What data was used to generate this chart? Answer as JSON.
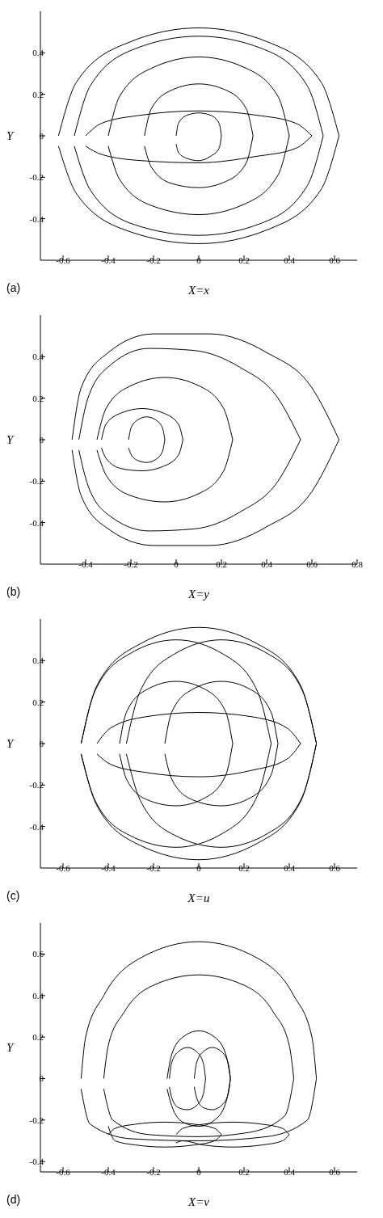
{
  "chart_data": [
    {
      "type": "line",
      "xlabel": "X=x",
      "ylabel": "Y",
      "annotations": [
        "(a)"
      ],
      "xlim": [
        -0.7,
        0.7
      ],
      "ylim": [
        -0.6,
        0.6
      ],
      "xticks": [
        -0.6,
        -0.4,
        -0.2,
        0,
        0.2,
        0.4,
        0.6
      ],
      "yticks": [
        -0.4,
        -0.2,
        0,
        0.2,
        0.4
      ],
      "series": [
        {
          "color": "#000000",
          "x": [
            -0.62,
            -0.54,
            -0.31,
            0,
            0.31,
            0.54,
            0.62
          ],
          "values": [
            0,
            0.26,
            0.45,
            0.52,
            0.45,
            0.26,
            0
          ]
        },
        {
          "color": "#000000",
          "x": [
            -0.62,
            -0.54,
            -0.31,
            0,
            0.31,
            0.54,
            0.62
          ],
          "values": [
            -0.05,
            -0.28,
            -0.46,
            -0.52,
            -0.45,
            -0.26,
            0
          ]
        },
        {
          "color": "#000000",
          "x": [
            -0.55,
            -0.48,
            -0.28,
            0,
            0.28,
            0.48,
            0.55
          ],
          "values": [
            0,
            0.24,
            0.42,
            0.48,
            0.42,
            0.24,
            0
          ]
        },
        {
          "color": "#000000",
          "x": [
            -0.55,
            -0.48,
            -0.28,
            0,
            0.28,
            0.48,
            0.55
          ],
          "values": [
            -0.05,
            -0.26,
            -0.43,
            -0.48,
            -0.42,
            -0.24,
            0
          ]
        },
        {
          "color": "#000000",
          "x": [
            -0.4,
            -0.35,
            -0.2,
            0,
            0.2,
            0.35,
            0.4
          ],
          "values": [
            0,
            0.19,
            0.33,
            0.38,
            0.33,
            0.19,
            0
          ]
        },
        {
          "color": "#000000",
          "x": [
            -0.4,
            -0.35,
            -0.2,
            0,
            0.2,
            0.35,
            0.4
          ],
          "values": [
            -0.05,
            -0.21,
            -0.34,
            -0.38,
            -0.33,
            -0.19,
            0
          ]
        },
        {
          "color": "#000000",
          "x": [
            -0.24,
            -0.21,
            -0.12,
            0,
            0.12,
            0.21,
            0.24
          ],
          "values": [
            0,
            0.13,
            0.22,
            0.25,
            0.22,
            0.13,
            0
          ]
        },
        {
          "color": "#000000",
          "x": [
            -0.24,
            -0.21,
            -0.12,
            0,
            0.12,
            0.21,
            0.24
          ],
          "values": [
            -0.05,
            -0.15,
            -0.23,
            -0.25,
            -0.22,
            -0.13,
            0
          ]
        },
        {
          "color": "#000000",
          "x": [
            -0.1,
            -0.09,
            -0.05,
            0,
            0.05,
            0.09,
            0.1
          ],
          "values": [
            0,
            0.06,
            0.1,
            0.11,
            0.1,
            0.06,
            0
          ]
        },
        {
          "color": "#000000",
          "x": [
            -0.1,
            -0.09,
            -0.05,
            0,
            0.05,
            0.09,
            0.1
          ],
          "values": [
            -0.04,
            -0.08,
            -0.11,
            -0.12,
            -0.1,
            -0.06,
            0
          ]
        },
        {
          "color": "#000000",
          "x": [
            -0.5,
            -0.43,
            -0.25,
            0,
            0.25,
            0.43,
            0.5
          ],
          "values": [
            0,
            0.06,
            0.1,
            0.12,
            0.1,
            0.06,
            0
          ]
        },
        {
          "color": "#000000",
          "x": [
            -0.5,
            -0.43,
            -0.25,
            0,
            0.25,
            0.43,
            0.5
          ],
          "values": [
            -0.05,
            -0.09,
            -0.12,
            -0.13,
            -0.1,
            -0.06,
            0
          ]
        }
      ]
    },
    {
      "type": "line",
      "xlabel": "X=y",
      "ylabel": "Y",
      "annotations": [
        "(b)"
      ],
      "xlim": [
        -0.6,
        0.8
      ],
      "ylim": [
        -0.6,
        0.6
      ],
      "xticks": [
        -0.4,
        -0.2,
        0,
        0.2,
        0.4,
        0.6,
        0.8
      ],
      "yticks": [
        -0.4,
        -0.2,
        0,
        0.2,
        0.4
      ],
      "series": [
        {
          "color": "#000000",
          "x": [
            -0.46,
            -0.42,
            -0.3,
            -0.1,
            0.15,
            0.4,
            0.6,
            0.72
          ],
          "values": [
            0,
            0.25,
            0.42,
            0.51,
            0.51,
            0.42,
            0.25,
            0
          ]
        },
        {
          "color": "#000000",
          "x": [
            -0.46,
            -0.42,
            -0.3,
            -0.1,
            0.15,
            0.4,
            0.6,
            0.72
          ],
          "values": [
            -0.05,
            -0.27,
            -0.43,
            -0.51,
            -0.51,
            -0.42,
            -0.25,
            0
          ]
        },
        {
          "color": "#000000",
          "x": [
            -0.43,
            -0.39,
            -0.29,
            -0.12,
            0.08,
            0.28,
            0.45,
            0.55
          ],
          "values": [
            0,
            0.2,
            0.36,
            0.44,
            0.43,
            0.35,
            0.2,
            0
          ]
        },
        {
          "color": "#000000",
          "x": [
            -0.43,
            -0.39,
            -0.29,
            -0.12,
            0.08,
            0.28,
            0.45,
            0.55
          ],
          "values": [
            -0.05,
            -0.22,
            -0.37,
            -0.44,
            -0.43,
            -0.35,
            -0.2,
            0
          ]
        },
        {
          "color": "#000000",
          "x": [
            -0.35,
            -0.31,
            -0.2,
            -0.05,
            0.1,
            0.21,
            0.25
          ],
          "values": [
            0,
            0.15,
            0.26,
            0.3,
            0.26,
            0.15,
            0
          ]
        },
        {
          "color": "#000000",
          "x": [
            -0.35,
            -0.31,
            -0.2,
            -0.05,
            0.1,
            0.21,
            0.25
          ],
          "values": [
            -0.05,
            -0.17,
            -0.27,
            -0.3,
            -0.26,
            -0.15,
            0
          ]
        },
        {
          "color": "#000000",
          "x": [
            -0.33,
            -0.31,
            -0.24,
            -0.15,
            -0.06,
            0.01,
            0.03
          ],
          "values": [
            0,
            0.075,
            0.13,
            0.15,
            0.13,
            0.075,
            0
          ]
        },
        {
          "color": "#000000",
          "x": [
            -0.33,
            -0.31,
            -0.24,
            -0.15,
            -0.06,
            0.01,
            0.03
          ],
          "values": [
            -0.04,
            -0.09,
            -0.14,
            -0.15,
            -0.13,
            -0.075,
            0
          ]
        },
        {
          "color": "#000000",
          "x": [
            -0.21,
            -0.2,
            -0.17,
            -0.13,
            -0.09,
            -0.06,
            -0.05
          ],
          "values": [
            0,
            0.055,
            0.095,
            0.11,
            0.095,
            0.055,
            0
          ]
        },
        {
          "color": "#000000",
          "x": [
            -0.21,
            -0.2,
            -0.17,
            -0.13,
            -0.09,
            -0.06,
            -0.05
          ],
          "values": [
            -0.04,
            -0.07,
            -0.1,
            -0.11,
            -0.095,
            -0.055,
            0
          ]
        }
      ]
    },
    {
      "type": "line",
      "xlabel": "X=u",
      "ylabel": "Y",
      "annotations": [
        "(c)"
      ],
      "xlim": [
        -0.7,
        0.7
      ],
      "ylim": [
        -0.6,
        0.6
      ],
      "xticks": [
        -0.6,
        -0.4,
        -0.2,
        0,
        0.2,
        0.4,
        0.6
      ],
      "yticks": [
        -0.4,
        -0.2,
        0,
        0.2,
        0.4
      ],
      "series": [
        {
          "color": "#000000",
          "x": [
            -0.52,
            -0.45,
            -0.26,
            0,
            0.26,
            0.45,
            0.52
          ],
          "values": [
            0,
            0.28,
            0.48,
            0.56,
            0.48,
            0.28,
            0
          ]
        },
        {
          "color": "#000000",
          "x": [
            -0.52,
            -0.45,
            -0.26,
            0,
            0.26,
            0.45,
            0.52
          ],
          "values": [
            -0.05,
            -0.3,
            -0.49,
            -0.56,
            -0.48,
            -0.28,
            0
          ]
        },
        {
          "color": "#000000",
          "x": [
            -0.32,
            -0.26,
            -0.11,
            0.1,
            0.31,
            0.46,
            0.52
          ],
          "values": [
            0,
            0.25,
            0.43,
            0.5,
            0.43,
            0.25,
            0
          ]
        },
        {
          "color": "#000000",
          "x": [
            -0.32,
            -0.26,
            -0.11,
            0.1,
            0.31,
            0.46,
            0.52
          ],
          "values": [
            -0.05,
            -0.27,
            -0.44,
            -0.5,
            -0.43,
            -0.25,
            0
          ]
        },
        {
          "color": "#000000",
          "x": [
            -0.52,
            -0.46,
            -0.31,
            -0.1,
            0.11,
            0.26,
            0.32
          ],
          "values": [
            0,
            0.25,
            0.43,
            0.5,
            0.43,
            0.25,
            0
          ]
        },
        {
          "color": "#000000",
          "x": [
            -0.52,
            -0.46,
            -0.31,
            -0.1,
            0.11,
            0.26,
            0.32
          ],
          "values": [
            -0.05,
            -0.27,
            -0.44,
            -0.5,
            -0.43,
            -0.25,
            0
          ]
        },
        {
          "color": "#000000",
          "x": [
            -0.15,
            -0.12,
            -0.03,
            0.1,
            0.23,
            0.32,
            0.35
          ],
          "values": [
            0,
            0.15,
            0.26,
            0.3,
            0.26,
            0.15,
            0
          ]
        },
        {
          "color": "#000000",
          "x": [
            -0.15,
            -0.12,
            -0.03,
            0.1,
            0.23,
            0.32,
            0.35
          ],
          "values": [
            -0.05,
            -0.17,
            -0.27,
            -0.3,
            -0.26,
            -0.15,
            0
          ]
        },
        {
          "color": "#000000",
          "x": [
            -0.35,
            -0.32,
            -0.23,
            -0.1,
            0.03,
            0.12,
            0.15
          ],
          "values": [
            0,
            0.15,
            0.26,
            0.3,
            0.26,
            0.15,
            0
          ]
        },
        {
          "color": "#000000",
          "x": [
            -0.35,
            -0.32,
            -0.23,
            -0.1,
            0.03,
            0.12,
            0.15
          ],
          "values": [
            -0.05,
            -0.17,
            -0.27,
            -0.3,
            -0.26,
            -0.15,
            0
          ]
        },
        {
          "color": "#000000",
          "x": [
            -0.45,
            -0.39,
            -0.23,
            0,
            0.23,
            0.39,
            0.45
          ],
          "values": [
            0,
            0.075,
            0.13,
            0.15,
            0.13,
            0.075,
            0
          ]
        },
        {
          "color": "#000000",
          "x": [
            -0.45,
            -0.39,
            -0.23,
            0,
            0.23,
            0.39,
            0.45
          ],
          "values": [
            -0.05,
            -0.1,
            -0.14,
            -0.16,
            -0.13,
            -0.075,
            0
          ]
        }
      ]
    },
    {
      "type": "line",
      "xlabel": "X=v",
      "ylabel": "Y",
      "annotations": [
        "(d)"
      ],
      "xlim": [
        -0.7,
        0.7
      ],
      "ylim": [
        -0.45,
        0.75
      ],
      "xticks": [
        -0.6,
        -0.4,
        -0.2,
        0,
        0.2,
        0.4,
        0.6
      ],
      "yticks": [
        -0.4,
        -0.2,
        0,
        0.2,
        0.4,
        0.6
      ],
      "series": [
        {
          "color": "#000000",
          "x": [
            -0.52,
            -0.5,
            -0.42,
            -0.26,
            0,
            0.26,
            0.42,
            0.5,
            0.52
          ],
          "values": [
            0,
            0.2,
            0.4,
            0.58,
            0.66,
            0.58,
            0.4,
            0.2,
            0
          ]
        },
        {
          "color": "#000000",
          "x": [
            -0.52,
            -0.48,
            -0.3,
            0,
            0.3,
            0.48,
            0.52
          ],
          "values": [
            -0.05,
            -0.22,
            -0.29,
            -0.3,
            -0.28,
            -0.2,
            0
          ]
        },
        {
          "color": "#000000",
          "x": [
            -0.42,
            -0.4,
            -0.33,
            -0.2,
            0,
            0.2,
            0.33,
            0.4,
            0.42
          ],
          "values": [
            0,
            0.16,
            0.32,
            0.45,
            0.5,
            0.45,
            0.32,
            0.16,
            0
          ]
        },
        {
          "color": "#000000",
          "x": [
            -0.42,
            -0.38,
            -0.22,
            0,
            0.22,
            0.38,
            0.42
          ],
          "values": [
            -0.05,
            -0.2,
            -0.27,
            -0.28,
            -0.26,
            -0.18,
            0
          ]
        },
        {
          "color": "#000000",
          "x": [
            -0.14,
            -0.12,
            -0.07,
            0,
            0.07,
            0.12,
            0.14
          ],
          "values": [
            0,
            0.115,
            0.2,
            0.23,
            0.2,
            0.115,
            0
          ]
        },
        {
          "color": "#000000",
          "x": [
            -0.14,
            -0.12,
            -0.07,
            0,
            0.07,
            0.12,
            0.14
          ],
          "values": [
            -0.05,
            -0.13,
            -0.21,
            -0.23,
            -0.2,
            -0.115,
            0
          ]
        },
        {
          "color": "#000000",
          "x": [
            -0.13,
            -0.12,
            -0.09,
            -0.05,
            -0.01,
            0.02,
            0.03
          ],
          "values": [
            0,
            0.075,
            0.13,
            0.15,
            0.13,
            0.075,
            0
          ]
        },
        {
          "color": "#000000",
          "x": [
            -0.13,
            -0.12,
            -0.09,
            -0.05,
            -0.01,
            0.02,
            0.03
          ],
          "values": [
            -0.04,
            -0.09,
            -0.14,
            -0.15,
            -0.13,
            -0.075,
            0
          ]
        },
        {
          "color": "#000000",
          "x": [
            -0.02,
            -0.01,
            0.02,
            0.06,
            0.1,
            0.13,
            0.14
          ],
          "values": [
            0,
            0.075,
            0.13,
            0.15,
            0.13,
            0.075,
            0
          ]
        },
        {
          "color": "#000000",
          "x": [
            -0.02,
            -0.01,
            0.02,
            0.06,
            0.1,
            0.13,
            0.14
          ],
          "values": [
            -0.04,
            -0.09,
            -0.14,
            -0.15,
            -0.13,
            -0.075,
            0
          ]
        },
        {
          "color": "#000000",
          "x": [
            -0.4,
            -0.37,
            -0.28,
            -0.15,
            -0.02,
            0.07,
            0.1
          ],
          "values": [
            -0.27,
            -0.24,
            -0.22,
            -0.21,
            -0.22,
            -0.24,
            -0.27
          ]
        },
        {
          "color": "#000000",
          "x": [
            -0.4,
            -0.37,
            -0.28,
            -0.15,
            -0.02,
            0.07,
            0.1
          ],
          "values": [
            -0.23,
            -0.3,
            -0.32,
            -0.33,
            -0.32,
            -0.3,
            -0.27
          ]
        },
        {
          "color": "#000000",
          "x": [
            -0.1,
            -0.07,
            0.02,
            0.15,
            0.28,
            0.37,
            0.4
          ],
          "values": [
            -0.27,
            -0.24,
            -0.22,
            -0.21,
            -0.22,
            -0.24,
            -0.27
          ]
        },
        {
          "color": "#000000",
          "x": [
            -0.1,
            -0.07,
            0.02,
            0.15,
            0.28,
            0.37,
            0.4
          ],
          "values": [
            -0.31,
            -0.3,
            -0.32,
            -0.33,
            -0.32,
            -0.3,
            -0.27
          ]
        }
      ]
    }
  ]
}
